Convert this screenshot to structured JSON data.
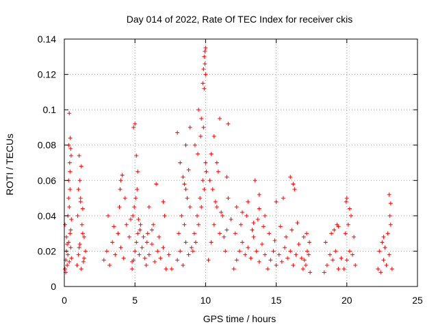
{
  "chart_data": {
    "type": "scatter",
    "title": "Day 014 of 2022, Rate Of TEC Index for receiver ckis",
    "xlabel": "GPS time / hours",
    "ylabel": "ROTI / TECUs",
    "xlim": [
      0,
      25
    ],
    "ylim": [
      0,
      0.14
    ],
    "xticks": [
      0,
      5,
      10,
      15,
      20,
      25
    ],
    "yticks": [
      0,
      0.02,
      0.04,
      0.06,
      0.08,
      0.1,
      0.12,
      0.14
    ],
    "xtick_labels": [
      "0",
      "5",
      "10",
      "15",
      "20",
      "25"
    ],
    "ytick_labels": [
      "0",
      "0.02",
      "0.04",
      "0.06",
      "0.08",
      "0.1",
      "0.12",
      "0.14"
    ],
    "grid": true,
    "marker": "plus",
    "color": "#ff0000",
    "series": [
      {
        "x": [
          0.05,
          0.1,
          0.15,
          0.2,
          0.25,
          0.3,
          0.35,
          0.4,
          0.45,
          0.5,
          0.05,
          0.15,
          0.25,
          0.35,
          0.45,
          0.1,
          0.2,
          0.3,
          0.4,
          0.5,
          0.3,
          0.32,
          0.38,
          0.42,
          0.35,
          0.4,
          0.45,
          0.48,
          0.9,
          1.0,
          1.1,
          1.2,
          1.3,
          1.4,
          0.95,
          1.05,
          1.15,
          1.25,
          1.35,
          1.0,
          1.1,
          1.2,
          1.05,
          1.15,
          1.3,
          1.4,
          1.5,
          2.8,
          3.0,
          3.2,
          3.4,
          3.6,
          3.8,
          4.0,
          4.2,
          4.4,
          4.6,
          4.8,
          3.1,
          3.5,
          3.9,
          4.3,
          4.7,
          4.0,
          4.1,
          3.95,
          4.8,
          4.9,
          5.0,
          5.1,
          5.2,
          5.3,
          5.4,
          5.5,
          5.6,
          5.7,
          4.85,
          4.95,
          5.05,
          5.15,
          5.25,
          5.35,
          4.9,
          5.0,
          5.1,
          5.2,
          5.8,
          6.0,
          6.2,
          6.4,
          6.6,
          6.8,
          7.0,
          7.2,
          7.4,
          5.9,
          6.3,
          6.7,
          7.1,
          6.0,
          6.5,
          7.0,
          5.85,
          6.2,
          7.6,
          8.0,
          8.2,
          8.4,
          8.6,
          8.8,
          9.0,
          8.1,
          8.3,
          8.5,
          8.7,
          8.9,
          8.0,
          8.2,
          8.4,
          8.6,
          8.5,
          8.6,
          8.8,
          8.9,
          9.1,
          9.2,
          9.3,
          9.4,
          9.5,
          9.6,
          9.7,
          9.8,
          9.9,
          10.0,
          9.25,
          9.45,
          9.65,
          9.85,
          10.05,
          9.5,
          9.7,
          9.9,
          9.8,
          9.85,
          9.9,
          9.95,
          10.0,
          9.95,
          10.0,
          10.2,
          10.4,
          10.6,
          10.8,
          11.0,
          11.2,
          11.4,
          11.6,
          11.8,
          10.3,
          10.5,
          10.7,
          10.9,
          11.1,
          11.3,
          11.5,
          10.4,
          10.6,
          10.8,
          11.0,
          11.6,
          11.5,
          12.0,
          12.2,
          12.4,
          12.6,
          12.8,
          13.0,
          13.2,
          13.4,
          13.6,
          13.8,
          14.0,
          14.2,
          12.1,
          12.5,
          12.9,
          13.3,
          13.7,
          14.1,
          12.2,
          12.6,
          13.0,
          13.4,
          13.8,
          14.2,
          13.5,
          13.8,
          14.4,
          14.6,
          14.8,
          15.0,
          15.2,
          15.4,
          15.6,
          15.8,
          16.0,
          16.2,
          16.4,
          16.6,
          16.8,
          14.5,
          14.9,
          15.3,
          15.7,
          16.1,
          16.5,
          15.0,
          15.5,
          16.0,
          16.2,
          16.3,
          16.9,
          17.0,
          17.1,
          17.2,
          17.3,
          17.4,
          16.95,
          17.15,
          17.35,
          18.4,
          18.6,
          18.8,
          19.0,
          19.2,
          19.4,
          19.6,
          18.5,
          18.9,
          19.3,
          19.1,
          19.4,
          19.8,
          20.0,
          20.2,
          20.4,
          20.6,
          19.9,
          20.1,
          20.3,
          20.5,
          20.0,
          20.2,
          19.95,
          22.2,
          22.4,
          22.6,
          22.8,
          23.0,
          23.2,
          22.3,
          22.5,
          22.7,
          22.9,
          23.1,
          22.6,
          23.0,
          23.1,
          23.05
        ],
        "y": [
          0.01,
          0.015,
          0.02,
          0.012,
          0.018,
          0.025,
          0.014,
          0.03,
          0.022,
          0.016,
          0.035,
          0.028,
          0.04,
          0.045,
          0.032,
          0.008,
          0.024,
          0.05,
          0.055,
          0.038,
          0.06,
          0.08,
          0.07,
          0.084,
          0.098,
          0.065,
          0.078,
          0.074,
          0.012,
          0.018,
          0.024,
          0.01,
          0.03,
          0.016,
          0.04,
          0.022,
          0.048,
          0.035,
          0.014,
          0.055,
          0.06,
          0.068,
          0.074,
          0.05,
          0.044,
          0.028,
          0.02,
          0.015,
          0.02,
          0.012,
          0.025,
          0.018,
          0.03,
          0.022,
          0.016,
          0.035,
          0.028,
          0.014,
          0.04,
          0.034,
          0.045,
          0.05,
          0.038,
          0.06,
          0.063,
          0.055,
          0.01,
          0.015,
          0.02,
          0.025,
          0.03,
          0.018,
          0.035,
          0.022,
          0.028,
          0.016,
          0.04,
          0.045,
          0.05,
          0.055,
          0.038,
          0.032,
          0.09,
          0.092,
          0.074,
          0.065,
          0.012,
          0.018,
          0.024,
          0.014,
          0.02,
          0.016,
          0.022,
          0.01,
          0.018,
          0.03,
          0.035,
          0.028,
          0.04,
          0.045,
          0.058,
          0.048,
          0.025,
          0.032,
          0.01,
          0.015,
          0.02,
          0.012,
          0.025,
          0.018,
          0.022,
          0.03,
          0.04,
          0.035,
          0.05,
          0.045,
          0.087,
          0.07,
          0.062,
          0.08,
          0.058,
          0.055,
          0.066,
          0.09,
          0.02,
          0.03,
          0.025,
          0.04,
          0.035,
          0.05,
          0.045,
          0.06,
          0.055,
          0.07,
          0.08,
          0.075,
          0.085,
          0.09,
          0.065,
          0.1,
          0.095,
          0.112,
          0.115,
          0.123,
          0.13,
          0.126,
          0.135,
          0.133,
          0.12,
          0.015,
          0.025,
          0.035,
          0.045,
          0.03,
          0.04,
          0.02,
          0.05,
          0.038,
          0.06,
          0.055,
          0.048,
          0.065,
          0.042,
          0.028,
          0.032,
          0.075,
          0.085,
          0.07,
          0.095,
          0.092,
          0.062,
          0.01,
          0.015,
          0.02,
          0.025,
          0.018,
          0.022,
          0.016,
          0.028,
          0.02,
          0.014,
          0.024,
          0.018,
          0.03,
          0.035,
          0.04,
          0.032,
          0.038,
          0.034,
          0.045,
          0.042,
          0.048,
          0.036,
          0.044,
          0.04,
          0.06,
          0.052,
          0.01,
          0.015,
          0.02,
          0.012,
          0.018,
          0.014,
          0.022,
          0.016,
          0.02,
          0.012,
          0.018,
          0.024,
          0.016,
          0.03,
          0.026,
          0.034,
          0.028,
          0.032,
          0.036,
          0.048,
          0.05,
          0.062,
          0.058,
          0.055,
          0.01,
          0.015,
          0.012,
          0.02,
          0.018,
          0.008,
          0.028,
          0.03,
          0.025,
          0.008,
          0.012,
          0.018,
          0.015,
          0.02,
          0.01,
          0.016,
          0.025,
          0.03,
          0.035,
          0.032,
          0.034,
          0.01,
          0.015,
          0.02,
          0.018,
          0.012,
          0.03,
          0.035,
          0.04,
          0.028,
          0.05,
          0.044,
          0.048,
          0.01,
          0.008,
          0.015,
          0.012,
          0.018,
          0.01,
          0.02,
          0.025,
          0.022,
          0.03,
          0.035,
          0.028,
          0.052,
          0.047,
          0.04
        ]
      }
    ]
  }
}
